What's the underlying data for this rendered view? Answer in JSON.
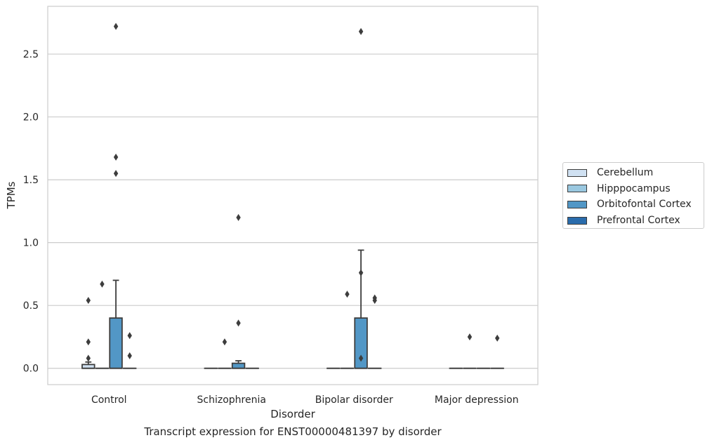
{
  "caption": "Transcript expression for ENST00000481397 by disorder",
  "chart_data": {
    "type": "box",
    "xlabel": "Disorder",
    "ylabel": "TPMs",
    "ylim": [
      -0.13,
      2.88
    ],
    "yticks": [
      0.0,
      0.5,
      1.0,
      1.5,
      2.0,
      2.5
    ],
    "ytick_labels": [
      "0.0",
      "0.5",
      "1.0",
      "1.5",
      "2.0",
      "2.5"
    ],
    "grid": "horizontal",
    "legend_position": "right",
    "categories": [
      "Control",
      "Schizophrenia",
      "Bipolar disorder",
      "Major depression"
    ],
    "series": [
      {
        "name": "Cerebellum",
        "color": "#d0e1f2",
        "boxes": [
          {
            "q1": 0.0,
            "median": 0.0,
            "q3": 0.03,
            "whisker_low": 0.0,
            "whisker_high": 0.05,
            "outliers": [
              0.08,
              0.21,
              0.54
            ]
          },
          {
            "q1": 0.0,
            "median": 0.0,
            "q3": 0.0,
            "whisker_low": 0.0,
            "whisker_high": 0.0,
            "outliers": []
          },
          {
            "q1": 0.0,
            "median": 0.0,
            "q3": 0.0,
            "whisker_low": 0.0,
            "whisker_high": 0.0,
            "outliers": []
          },
          {
            "q1": 0.0,
            "median": 0.0,
            "q3": 0.0,
            "whisker_low": 0.0,
            "whisker_high": 0.0,
            "outliers": []
          }
        ]
      },
      {
        "name": "Hipppocampus",
        "color": "#9ac8e0",
        "boxes": [
          {
            "q1": 0.0,
            "median": 0.0,
            "q3": 0.0,
            "whisker_low": 0.0,
            "whisker_high": 0.0,
            "outliers": [
              0.67
            ]
          },
          {
            "q1": 0.0,
            "median": 0.0,
            "q3": 0.0,
            "whisker_low": 0.0,
            "whisker_high": 0.0,
            "outliers": [
              0.21
            ]
          },
          {
            "q1": 0.0,
            "median": 0.0,
            "q3": 0.0,
            "whisker_low": 0.0,
            "whisker_high": 0.0,
            "outliers": [
              0.59
            ]
          },
          {
            "q1": 0.0,
            "median": 0.0,
            "q3": 0.0,
            "whisker_low": 0.0,
            "whisker_high": 0.0,
            "outliers": [
              0.25
            ]
          }
        ]
      },
      {
        "name": "Orbitofontal Cortex",
        "color": "#5297c6",
        "boxes": [
          {
            "q1": 0.0,
            "median": 0.0,
            "q3": 0.4,
            "whisker_low": 0.0,
            "whisker_high": 0.7,
            "outliers": [
              1.55,
              1.68,
              2.72
            ]
          },
          {
            "q1": 0.0,
            "median": 0.0,
            "q3": 0.04,
            "whisker_low": 0.0,
            "whisker_high": 0.06,
            "outliers": [
              0.36,
              1.2
            ]
          },
          {
            "q1": 0.0,
            "median": 0.0,
            "q3": 0.4,
            "whisker_low": 0.0,
            "whisker_high": 0.94,
            "outliers": [
              0.08,
              0.76,
              2.68
            ]
          },
          {
            "q1": 0.0,
            "median": 0.0,
            "q3": 0.0,
            "whisker_low": 0.0,
            "whisker_high": 0.0,
            "outliers": []
          }
        ]
      },
      {
        "name": "Prefrontal Cortex",
        "color": "#2a6cac",
        "boxes": [
          {
            "q1": 0.0,
            "median": 0.0,
            "q3": 0.0,
            "whisker_low": 0.0,
            "whisker_high": 0.0,
            "outliers": [
              0.1,
              0.26
            ]
          },
          {
            "q1": 0.0,
            "median": 0.0,
            "q3": 0.0,
            "whisker_low": 0.0,
            "whisker_high": 0.0,
            "outliers": []
          },
          {
            "q1": 0.0,
            "median": 0.0,
            "q3": 0.0,
            "whisker_low": 0.0,
            "whisker_high": 0.0,
            "outliers": [
              0.54,
              0.56
            ]
          },
          {
            "q1": 0.0,
            "median": 0.0,
            "q3": 0.0,
            "whisker_low": 0.0,
            "whisker_high": 0.0,
            "outliers": [
              0.24
            ]
          }
        ]
      }
    ]
  }
}
